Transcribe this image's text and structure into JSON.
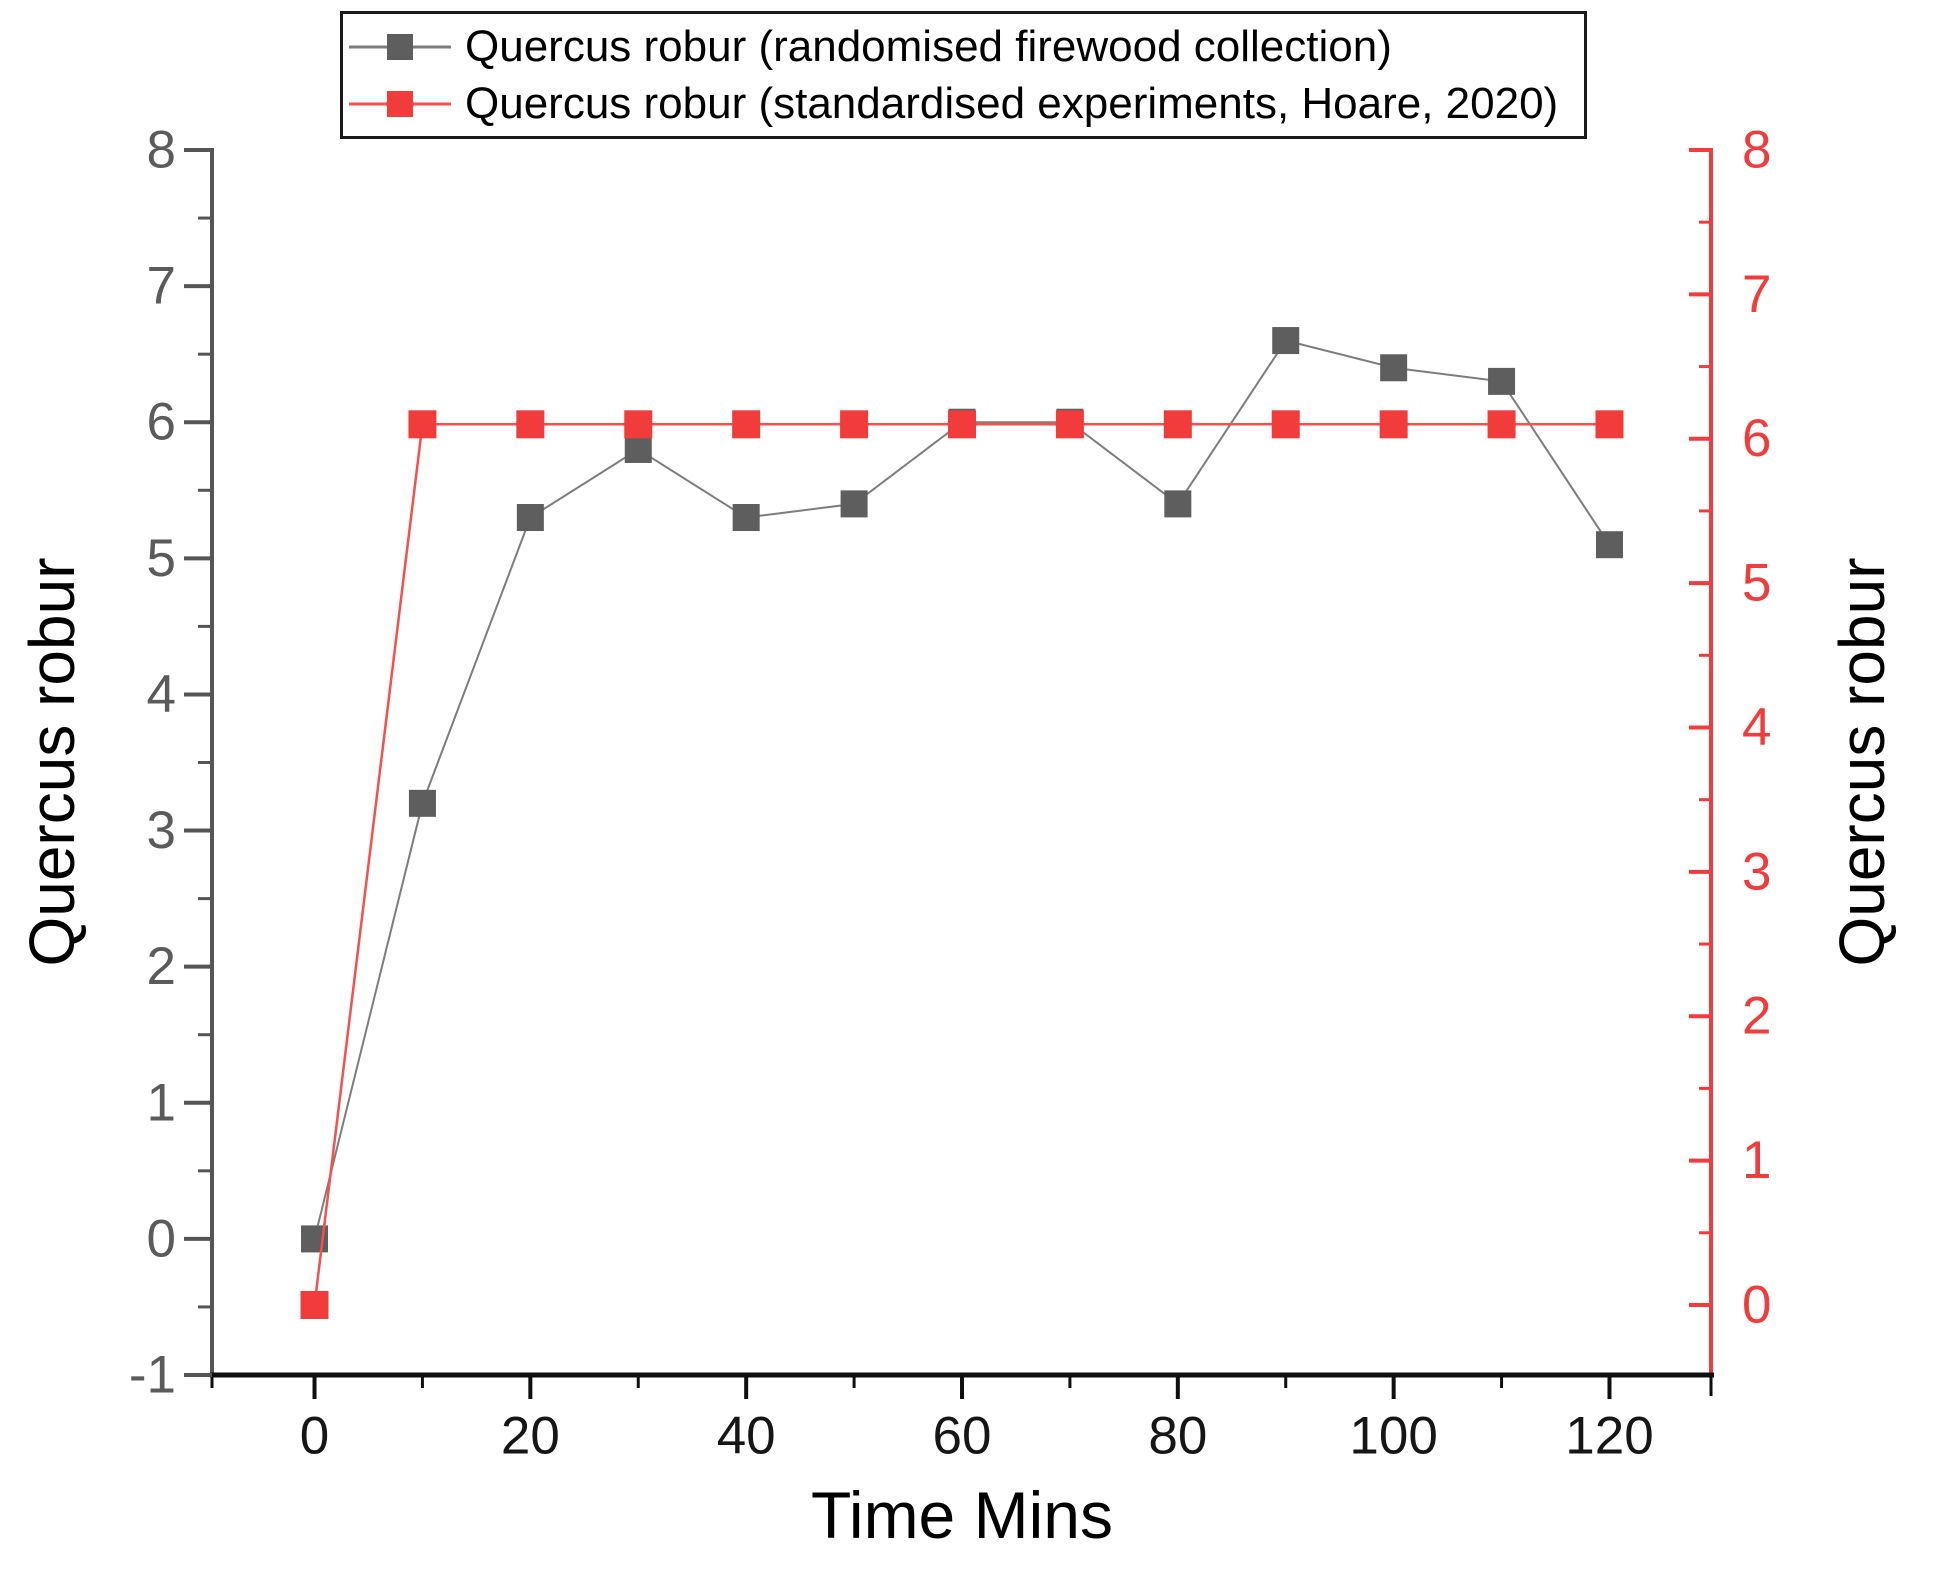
{
  "chart_data": {
    "type": "line",
    "xlabel": "Time Mins",
    "ylabel_left": "Quercus robur",
    "ylabel_right": "Quercus robur",
    "x": [
      0,
      10,
      20,
      30,
      40,
      50,
      60,
      70,
      80,
      90,
      100,
      110,
      120
    ],
    "series": [
      {
        "name": "Quercus robur (randomised firewood collection)",
        "y_axis": "left",
        "marker": "square",
        "marker_color": "#5e5e5e",
        "line_color": "#7d7d7d",
        "marker_size": 27,
        "line_width": 2,
        "values": [
          0,
          3.2,
          5.3,
          5.8,
          5.3,
          5.4,
          6.0,
          6.0,
          5.4,
          6.6,
          6.4,
          6.3,
          5.1
        ]
      },
      {
        "name": "Quercus robur (standardised experiments, Hoare, 2020)",
        "y_axis": "right",
        "marker": "square",
        "marker_color": "#f23b3b",
        "line_color": "#f4504e",
        "marker_size": 28,
        "line_width": 2.5,
        "values": [
          0,
          6.1,
          6.1,
          6.1,
          6.1,
          6.1,
          6.1,
          6.1,
          6.1,
          6.1,
          6.1,
          6.1,
          6.1
        ]
      }
    ],
    "xlim": [
      -9.5,
      129.5
    ],
    "left_ylim": [
      -1,
      8
    ],
    "right_ylim": [
      -0.485,
      8
    ],
    "x_ticks_major": [
      0,
      20,
      40,
      60,
      80,
      100,
      120
    ],
    "x_tick_labels": [
      "0",
      "20",
      "40",
      "60",
      "80",
      "100",
      "120"
    ],
    "x_ticks_minor": [
      10,
      30,
      50,
      70,
      90,
      110
    ],
    "left_ticks_major": [
      -1,
      0,
      1,
      2,
      3,
      4,
      5,
      6,
      7,
      8
    ],
    "left_tick_labels": [
      "-1",
      "0",
      "1",
      "2",
      "3",
      "4",
      "5",
      "6",
      "7",
      "8"
    ],
    "left_ticks_minor": [
      -0.5,
      0.5,
      1.5,
      2.5,
      3.5,
      4.5,
      5.5,
      6.5,
      7.5
    ],
    "right_ticks_major": [
      0,
      1,
      2,
      3,
      4,
      5,
      6,
      7,
      8
    ],
    "right_tick_labels": [
      "0",
      "1",
      "2",
      "3",
      "4",
      "5",
      "6",
      "7",
      "8"
    ],
    "right_ticks_minor": [
      0.5,
      1.5,
      2.5,
      3.5,
      4.5,
      5.5,
      6.5,
      7.5
    ],
    "grid": false,
    "legend_position": "top-center",
    "colors": {
      "left_axis": "#555555",
      "left_tick_labels": "#5b5b5b",
      "bottom_axis": "#0f0f0f",
      "x_tick_labels": "#161616",
      "right_axis": "#f23b3b",
      "right_tick_labels": "#f23b3b",
      "axis_titles": "#000000",
      "background": "#ffffff"
    }
  }
}
